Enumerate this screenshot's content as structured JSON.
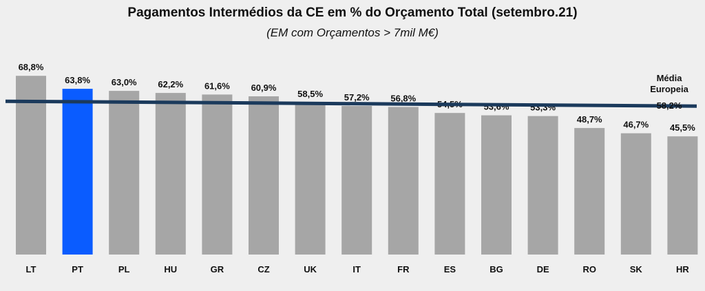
{
  "chart_data": {
    "type": "bar",
    "title": "Pagamentos Intermédios da CE em % do Orçamento Total (setembro.21)",
    "subtitle": "(EM com Orçamentos > 7mil M€)",
    "categories": [
      "LT",
      "PT",
      "PL",
      "HU",
      "GR",
      "CZ",
      "UK",
      "IT",
      "FR",
      "ES",
      "BG",
      "DE",
      "RO",
      "SK",
      "HR"
    ],
    "values": [
      68.8,
      63.8,
      63.0,
      62.2,
      61.6,
      60.9,
      58.5,
      57.2,
      56.8,
      54.5,
      53.6,
      53.3,
      48.7,
      46.7,
      45.5
    ],
    "value_labels": [
      "68,8%",
      "63,8%",
      "63,0%",
      "62,2%",
      "61,6%",
      "60,9%",
      "58,5%",
      "57,2%",
      "56,8%",
      "54,5%",
      "53,6%",
      "53,3%",
      "48,7%",
      "46,7%",
      "45,5%"
    ],
    "highlight_category": "PT",
    "reference_line": {
      "value": 58.2,
      "label_lines": [
        "Média",
        "Europeia",
        "58,2%"
      ]
    },
    "ylim": [
      0,
      70
    ],
    "grid": false,
    "legend": "none",
    "colors": {
      "bar": "#a6a6a6",
      "highlight": "#0a5cff",
      "reference_line": "#1b3a5c",
      "background": "#efefef"
    }
  }
}
